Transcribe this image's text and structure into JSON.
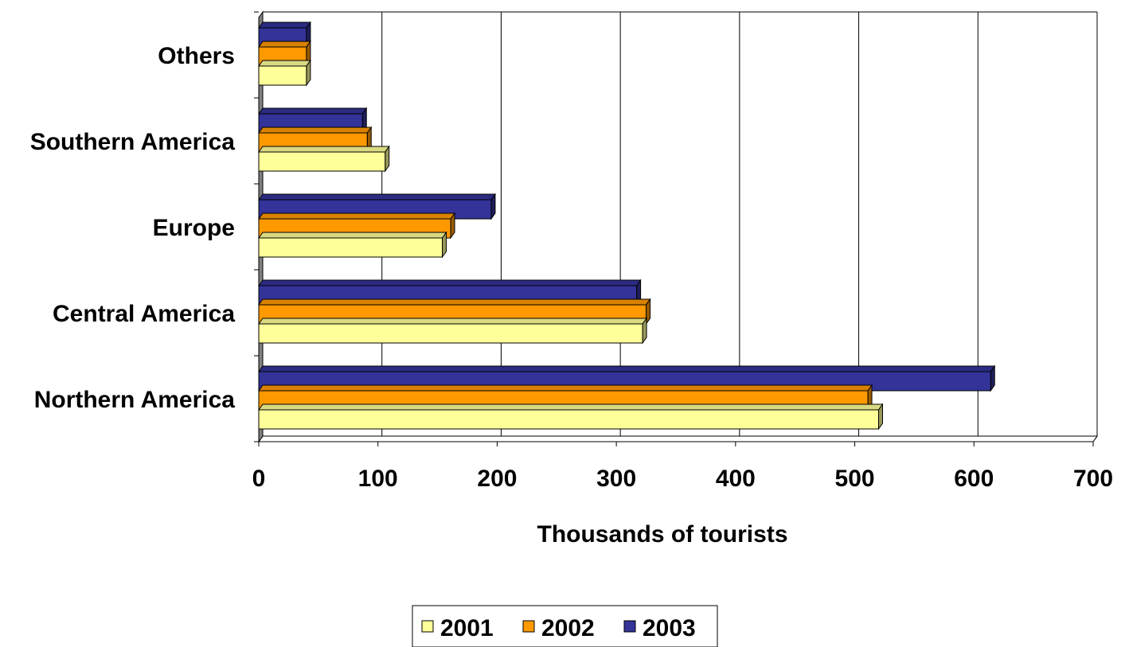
{
  "chart_data": {
    "type": "bar",
    "orientation": "horizontal",
    "three_d": true,
    "title": "",
    "xlabel": "Thousands of tourists",
    "ylabel": "",
    "xlim": [
      0,
      700
    ],
    "xticks": [
      "0",
      "100",
      "200",
      "300",
      "400",
      "500",
      "600",
      "700"
    ],
    "grid": "vertical",
    "legend_position": "bottom",
    "categories": [
      "Northern America",
      "Central America",
      "Europe",
      "Southern America",
      "Others"
    ],
    "series": [
      {
        "name": "2001",
        "color": "#ffff99",
        "values": [
          520,
          322,
          154,
          106,
          40
        ]
      },
      {
        "name": "2002",
        "color": "#ff9900",
        "values": [
          511,
          325,
          161,
          91,
          40
        ]
      },
      {
        "name": "2003",
        "color": "#333399",
        "values": [
          614,
          317,
          195,
          87,
          40
        ]
      }
    ]
  }
}
